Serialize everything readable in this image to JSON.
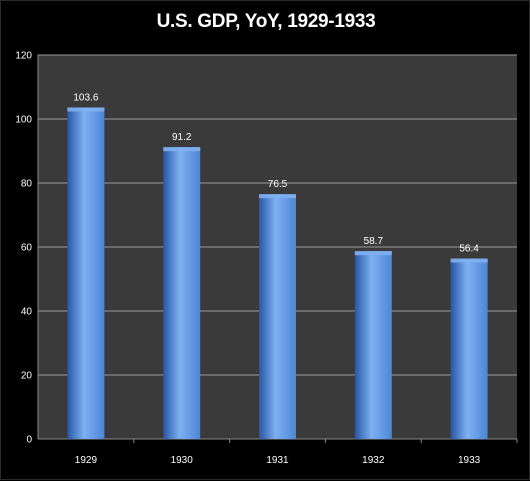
{
  "title": "U.S. GDP, YoY, 1929-1933",
  "chart_data": {
    "type": "bar",
    "title": "U.S. GDP, YoY, 1929-1933",
    "categories": [
      "1929",
      "1930",
      "1931",
      "1932",
      "1933"
    ],
    "values": [
      103.6,
      91.2,
      76.5,
      58.7,
      56.4
    ],
    "data_labels": [
      "103.6",
      "91.2",
      "76.5",
      "58.7",
      "56.4"
    ],
    "ylim": [
      0,
      120
    ],
    "yticks": [
      0,
      20,
      40,
      60,
      80,
      100,
      120
    ],
    "xlabel": "",
    "ylabel": "",
    "grid": true,
    "legend": "none",
    "colors": {
      "bar": "#4a86d8",
      "bar_light": "#7fb0f0",
      "bar_dark": "#2457a6",
      "plot_bg": "#3a3a3a",
      "gridline": "#9a9a9a",
      "text": "#ffffff"
    }
  }
}
